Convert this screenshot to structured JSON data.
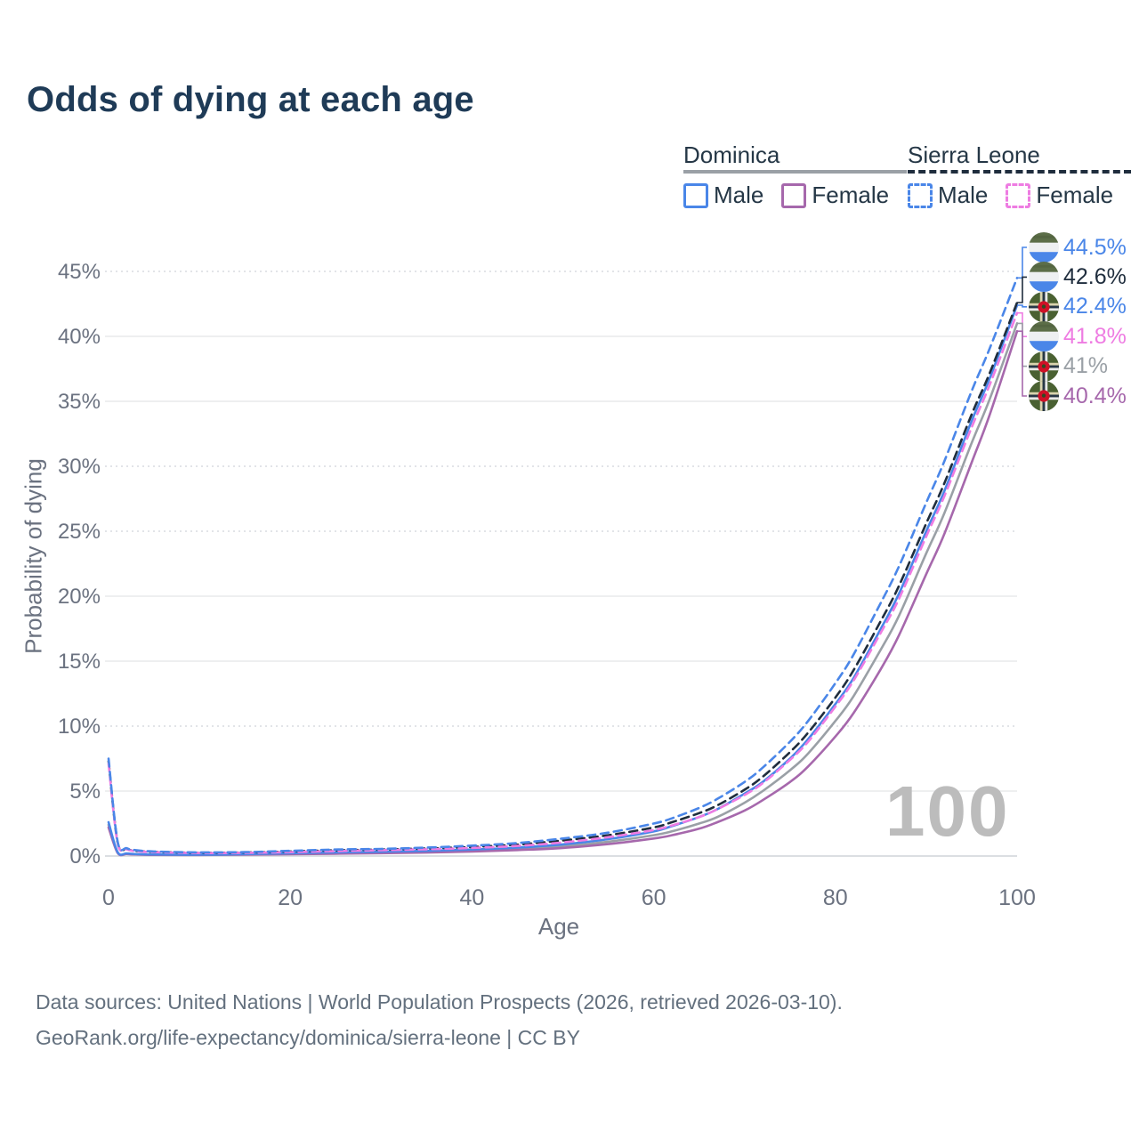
{
  "header": {
    "title": "Odds of dying at each age"
  },
  "legend": {
    "groups": [
      {
        "id": "dominica",
        "label": "Dominica",
        "line_color": "#9aa0a6",
        "line_style": "solid",
        "items": [
          {
            "id": "dominica-male",
            "label": "Male",
            "color": "#4a86e8",
            "style": "solid"
          },
          {
            "id": "dominica-female",
            "label": "Female",
            "color": "#a668ac",
            "style": "solid"
          }
        ]
      },
      {
        "id": "sierra-leone",
        "label": "Sierra Leone",
        "line_color": "#1f2d3d",
        "line_style": "dashed",
        "items": [
          {
            "id": "sierra-leone-male",
            "label": "Male",
            "color": "#4a86e8",
            "style": "dashed"
          },
          {
            "id": "sierra-leone-female",
            "label": "Female",
            "color": "#ee7ce2",
            "style": "dashed"
          }
        ]
      }
    ]
  },
  "chart_data": {
    "type": "line",
    "title": "Odds of dying at each age",
    "xlabel": "Age",
    "ylabel": "Probability of dying",
    "xlim": [
      0,
      100
    ],
    "ylim": [
      0,
      45
    ],
    "grid": true,
    "legend_position": "top-right",
    "age_watermark": "100",
    "x_ticks": [
      "0",
      "20",
      "40",
      "60",
      "80",
      "100"
    ],
    "x_tick_values": [
      0,
      20,
      40,
      60,
      80,
      100
    ],
    "y_ticks": [
      {
        "label": "0%",
        "value": 0,
        "dotted": false
      },
      {
        "label": "5%",
        "value": 5,
        "dotted": false
      },
      {
        "label": "10%",
        "value": 10,
        "dotted": true
      },
      {
        "label": "15%",
        "value": 15,
        "dotted": false
      },
      {
        "label": "20%",
        "value": 20,
        "dotted": false
      },
      {
        "label": "25%",
        "value": 25,
        "dotted": true
      },
      {
        "label": "30%",
        "value": 30,
        "dotted": true
      },
      {
        "label": "35%",
        "value": 35,
        "dotted": false
      },
      {
        "label": "40%",
        "value": 40,
        "dotted": false
      },
      {
        "label": "45%",
        "value": 45,
        "dotted": true
      }
    ],
    "x": [
      0,
      1,
      2,
      3,
      5,
      10,
      15,
      20,
      25,
      30,
      35,
      40,
      45,
      50,
      55,
      60,
      62,
      65,
      67,
      70,
      72,
      75,
      77,
      80,
      82,
      85,
      87,
      90,
      92,
      95,
      97,
      100
    ],
    "series": [
      {
        "name": "Dominica",
        "country": "Dominica",
        "sex": "Both",
        "color": "#9aa0a6",
        "dashed": false,
        "end_label": "41%",
        "end_value": 41.0,
        "flag": "dominica",
        "values": [
          2.4,
          0.27,
          0.18,
          0.13,
          0.1,
          0.09,
          0.12,
          0.18,
          0.23,
          0.27,
          0.33,
          0.42,
          0.55,
          0.75,
          1.1,
          1.6,
          1.9,
          2.5,
          3.0,
          4.1,
          5.0,
          6.6,
          7.9,
          10.4,
          12.3,
          15.9,
          18.5,
          23.3,
          26.4,
          31.8,
          35.2,
          41.0
        ]
      },
      {
        "name": "Dominica Female",
        "country": "Dominica",
        "sex": "Female",
        "color": "#a668ac",
        "dashed": false,
        "end_label": "40.4%",
        "end_value": 40.4,
        "flag": "dominica",
        "values": [
          2.2,
          0.24,
          0.16,
          0.12,
          0.09,
          0.08,
          0.1,
          0.14,
          0.18,
          0.22,
          0.27,
          0.35,
          0.46,
          0.62,
          0.92,
          1.35,
          1.6,
          2.1,
          2.6,
          3.5,
          4.3,
          5.7,
          6.9,
          9.2,
          11.0,
          14.4,
          17.0,
          21.7,
          24.8,
          30.3,
          34.0,
          40.4
        ]
      },
      {
        "name": "Dominica Male",
        "country": "Dominica",
        "sex": "Male",
        "color": "#4a86e8",
        "dashed": false,
        "end_label": "42.4%",
        "end_value": 42.4,
        "flag": "dominica",
        "values": [
          2.6,
          0.3,
          0.2,
          0.15,
          0.12,
          0.1,
          0.15,
          0.22,
          0.28,
          0.33,
          0.4,
          0.5,
          0.65,
          0.9,
          1.3,
          1.9,
          2.3,
          3.0,
          3.6,
          4.8,
          5.7,
          7.5,
          9.0,
          11.7,
          13.7,
          17.5,
          20.2,
          25.0,
          28.1,
          33.5,
          36.8,
          42.4
        ]
      },
      {
        "name": "Sierra Leone",
        "country": "Sierra Leone",
        "sex": "Both",
        "color": "#1f2d3d",
        "dashed": true,
        "end_label": "42.6%",
        "end_value": 42.6,
        "flag": "sierra-leone",
        "values": [
          7.3,
          1.05,
          0.55,
          0.4,
          0.32,
          0.25,
          0.27,
          0.35,
          0.44,
          0.5,
          0.58,
          0.7,
          0.88,
          1.2,
          1.6,
          2.2,
          2.6,
          3.3,
          3.9,
          5.1,
          6.1,
          8.0,
          9.5,
          12.2,
          14.3,
          18.1,
          20.8,
          25.6,
          28.7,
          34.0,
          37.2,
          42.6
        ]
      },
      {
        "name": "Sierra Leone Female",
        "country": "Sierra Leone",
        "sex": "Female",
        "color": "#ee7ce2",
        "dashed": true,
        "end_label": "41.8%",
        "end_value": 41.8,
        "flag": "sierra-leone",
        "values": [
          7.1,
          1.0,
          0.52,
          0.38,
          0.3,
          0.23,
          0.25,
          0.3,
          0.38,
          0.45,
          0.52,
          0.62,
          0.78,
          1.05,
          1.45,
          2.0,
          2.35,
          3.0,
          3.6,
          4.7,
          5.6,
          7.4,
          8.8,
          11.5,
          13.5,
          17.2,
          19.8,
          24.6,
          27.7,
          33.0,
          36.3,
          41.8
        ]
      },
      {
        "name": "Sierra Leone Male",
        "country": "Sierra Leone",
        "sex": "Male",
        "color": "#4a86e8",
        "dashed": true,
        "end_label": "44.5%",
        "end_value": 44.5,
        "flag": "sierra-leone",
        "values": [
          7.5,
          1.1,
          0.6,
          0.45,
          0.35,
          0.28,
          0.3,
          0.4,
          0.5,
          0.55,
          0.65,
          0.8,
          1.0,
          1.35,
          1.8,
          2.5,
          2.9,
          3.7,
          4.4,
          5.7,
          6.8,
          8.8,
          10.4,
          13.3,
          15.5,
          19.5,
          22.3,
          27.2,
          30.4,
          35.8,
          39.1,
          44.5
        ]
      }
    ]
  },
  "footer": {
    "line1": "Data sources: United Nations | World Population Prospects (2026, retrieved 2026-03-10).",
    "line2": "GeoRank.org/life-expectancy/dominica/sierra-leone | CC BY"
  },
  "colors": {
    "title": "#1f3b57",
    "axis_text": "#6b7280",
    "grid": "#e8eaec",
    "grid_dotted": "#d9dce0",
    "axis_line": "#cfd4d9",
    "watermark": "#bcbcbc"
  }
}
